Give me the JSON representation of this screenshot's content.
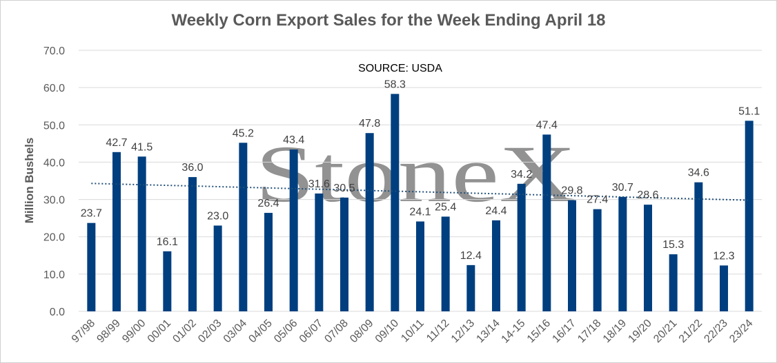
{
  "chart_data": {
    "type": "bar",
    "title": "Weekly Corn Export Sales for the Week Ending April 18",
    "ylabel": "Million Bushels",
    "xlabel": "",
    "ylim": [
      0,
      70
    ],
    "yticks": [
      "0.0",
      "10.0",
      "20.0",
      "30.0",
      "40.0",
      "50.0",
      "60.0",
      "70.0"
    ],
    "grid": true,
    "annotation": "SOURCE: USDA",
    "watermark": "StoneX",
    "trendline": {
      "style": "dotted",
      "start": 34.3,
      "end": 29.8
    },
    "categories": [
      "97/98",
      "98/99",
      "99/00",
      "00/01",
      "01/02",
      "02/03",
      "03/04",
      "04/05",
      "05/06",
      "06/07",
      "07/08",
      "08/09",
      "09/10",
      "10/11",
      "11/12",
      "12/13",
      "13/14",
      "14-15",
      "15/16",
      "16/17",
      "17/18",
      "18/19",
      "19/20",
      "20/21",
      "21/22",
      "22/23",
      "23/24"
    ],
    "values": [
      23.7,
      42.7,
      41.5,
      16.1,
      36.0,
      23.0,
      45.2,
      26.4,
      43.4,
      31.6,
      30.5,
      47.8,
      58.3,
      24.1,
      25.4,
      12.4,
      24.4,
      34.2,
      47.4,
      29.8,
      27.4,
      30.7,
      28.6,
      15.3,
      34.6,
      12.3,
      51.1
    ],
    "value_labels": [
      "23.7",
      "42.7",
      "41.5",
      "16.1",
      "36.0",
      "23.0",
      "45.2",
      "26.4",
      "43.4",
      "31.6",
      "30.5",
      "47.8",
      "58.3",
      "24.1",
      "25.4",
      "12.4",
      "24.4",
      "34.2",
      "47.4",
      "29.8",
      "27.4",
      "30.7",
      "28.6",
      "15.3",
      "34.6",
      "12.3",
      "51.1"
    ],
    "colors": {
      "bar": "#003f7f",
      "grid": "#d9d9d9",
      "trend": "#1f4e79",
      "text": "#595959"
    }
  }
}
